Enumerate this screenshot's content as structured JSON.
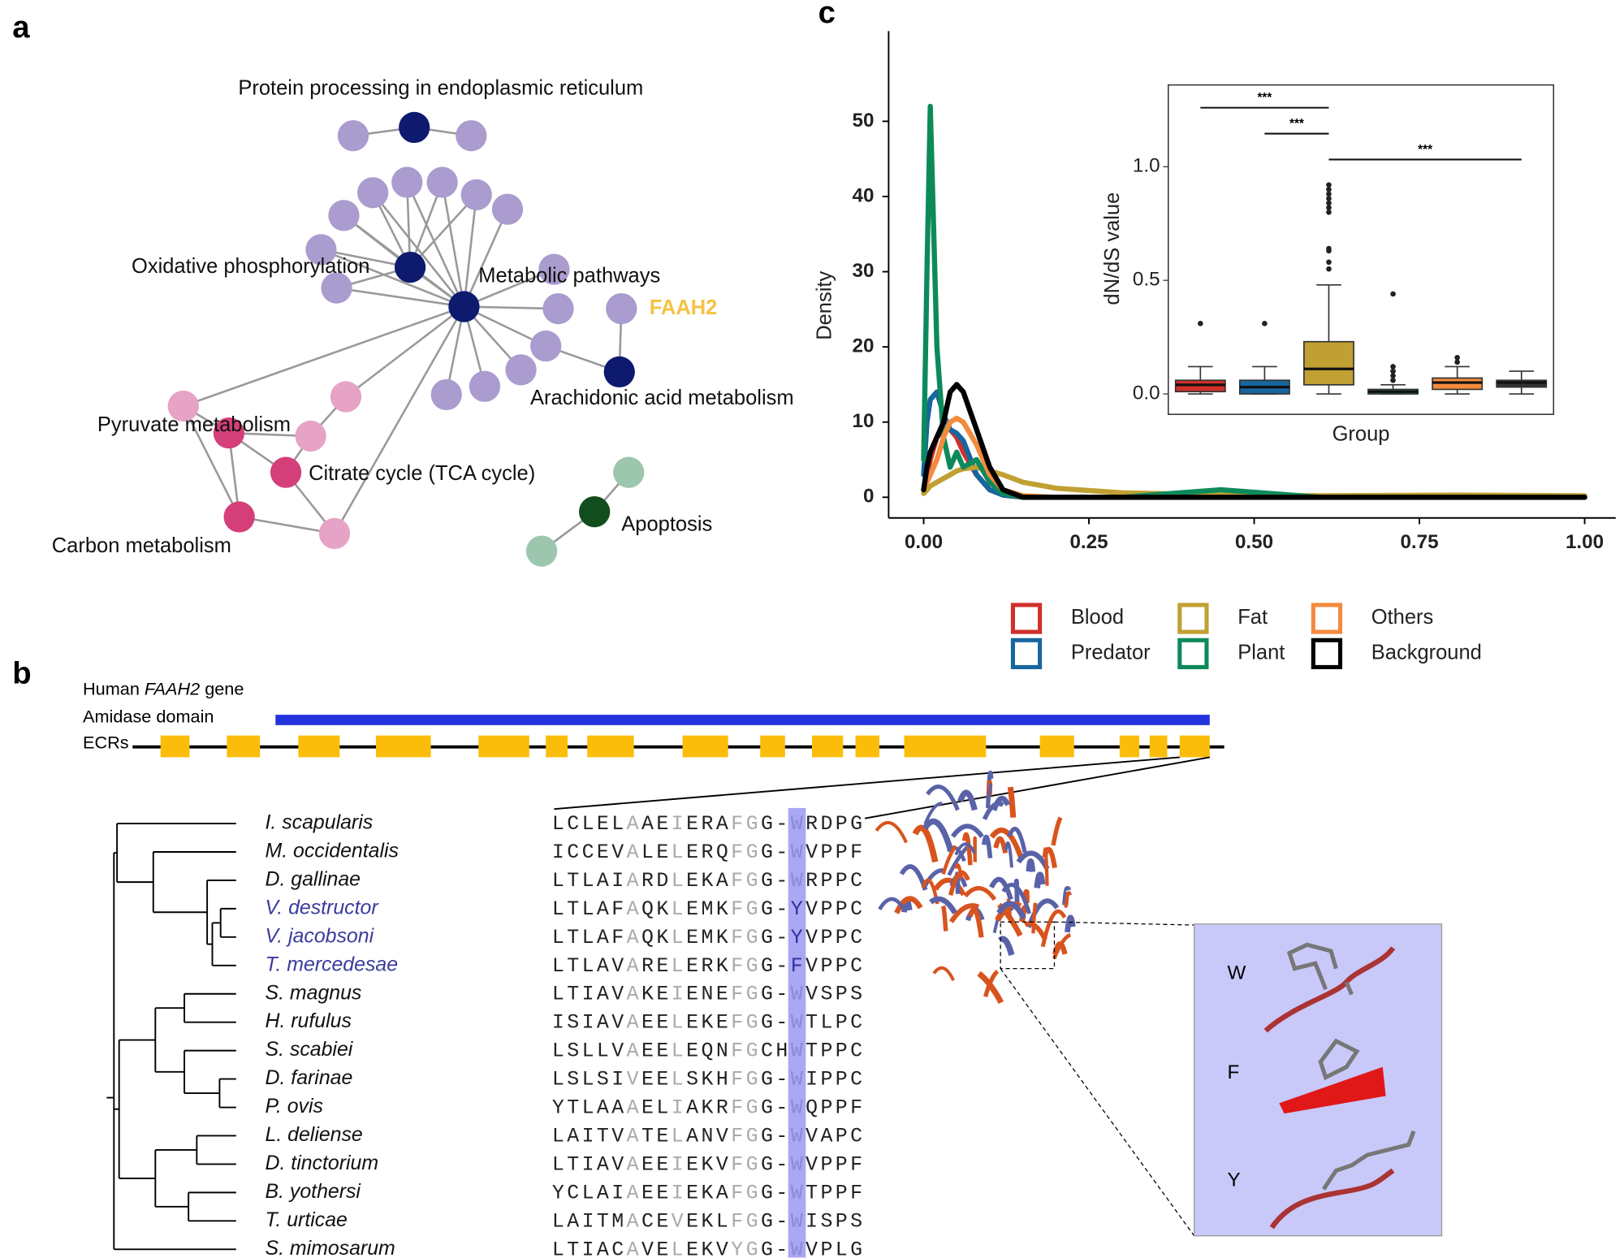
{
  "panel_labels": [
    "a",
    "b",
    "c"
  ],
  "network": {
    "labels": [
      "Protein processing in endoplasmic reticulum",
      "Oxidative phosphorylation",
      "Metabolic pathways",
      "FAAH2",
      "Arachidonic acid metabolism",
      "Pyruvate metabolism",
      "Citrate cycle (TCA cycle)",
      "Carbon metabolism",
      "Apoptosis"
    ]
  },
  "gene": {
    "title_parts": [
      "Human ",
      "FAAH2",
      " gene"
    ],
    "domain": "Amidase domain",
    "ecrs": "ECRs"
  },
  "alignment": {
    "rows": [
      {
        "species": "I. scapularis",
        "color": "#111111",
        "sequence": "LCLELAAEIERAFGG-WRDPG"
      },
      {
        "species": "M. occidentalis",
        "color": "#111111",
        "sequence": "ICCEVALELERQFGG-WVPPF"
      },
      {
        "species": "D. gallinae",
        "color": "#111111",
        "sequence": "LTLAIARDLEKAFGG-WRPPC"
      },
      {
        "species": "V. destructor",
        "color": "#3b3b9e",
        "sequence": "LTLAFAQKLEMKFGG-YVPPC"
      },
      {
        "species": "V. jacobsoni",
        "color": "#3b3b9e",
        "sequence": "LTLAFAQKLEMKFGG-YVPPC"
      },
      {
        "species": "T. mercedesae",
        "color": "#3b3b9e",
        "sequence": "LTLAVARELERKFGG-FVPPC"
      },
      {
        "species": "S. magnus",
        "color": "#111111",
        "sequence": "LTIAVAKEIENEFGG-WVSPS"
      },
      {
        "species": "H. rufulus",
        "color": "#111111",
        "sequence": "ISIAVAEELEKEFGG-WTLPC"
      },
      {
        "species": "S. scabiei",
        "color": "#111111",
        "sequence": "LSLLVAEELEQNFGCHWTPPC"
      },
      {
        "species": "D. farinae",
        "color": "#111111",
        "sequence": "LSLSIVEELSKHFGG-WIPPC"
      },
      {
        "species": "P. ovis",
        "color": "#111111",
        "sequence": "YTLAAAELIAKRFGG-WQPPF"
      },
      {
        "species": "L. deliense",
        "color": "#111111",
        "sequence": "LAITVATELANVFGG-WVAPC"
      },
      {
        "species": "D. tinctorium",
        "color": "#111111",
        "sequence": "LTIAVAEEIEKVFGG-WVPPF"
      },
      {
        "species": "B. yothersi",
        "color": "#111111",
        "sequence": "YCLAIAEEIEKAFGG-WTPPF"
      },
      {
        "species": "T. urticae",
        "color": "#111111",
        "sequence": "LAITMACEVEKLFGG-WISPS"
      },
      {
        "species": "S. mimosarum",
        "color": "#111111",
        "sequence": "LTIACAVELEKVYGG-WVPLG"
      }
    ]
  },
  "structure": {
    "residues": [
      "W",
      "F",
      "Y"
    ]
  },
  "chart_data": [
    {
      "type": "line",
      "ylabel": "Density",
      "legend": "bottom",
      "x": [
        0,
        0.005,
        0.01,
        0.02,
        0.03,
        0.04,
        0.05,
        0.06,
        0.08,
        0.1,
        0.12,
        0.15,
        0.2,
        0.3,
        0.45,
        0.6,
        0.8,
        1.0
      ],
      "xlim": [
        -0.053,
        1.047
      ],
      "ylim": [
        -2.75,
        62
      ],
      "xticks": [
        {
          "value": 0,
          "label": "0.00"
        },
        {
          "value": 0.25,
          "label": "0.25"
        },
        {
          "value": 0.5,
          "label": "0.50"
        },
        {
          "value": 0.75,
          "label": "0.75"
        },
        {
          "value": 1,
          "label": "1.00"
        }
      ],
      "yticks": [
        0,
        10,
        20,
        30,
        40,
        50
      ],
      "series": [
        {
          "name": "Blood",
          "color": "#d0302b",
          "values": [
            1,
            3,
            5,
            8,
            9,
            9,
            8,
            6,
            3,
            1,
            0.3,
            0,
            0,
            0,
            0,
            0,
            0,
            0
          ]
        },
        {
          "name": "Predator",
          "color": "#17669e",
          "values": [
            3,
            10,
            13,
            14,
            11,
            9,
            8.5,
            7.5,
            3,
            1,
            0.3,
            0,
            0,
            0,
            0,
            0,
            0,
            0
          ]
        },
        {
          "name": "Fat",
          "color": "#c1a033",
          "values": [
            0.5,
            1,
            1.5,
            2,
            2.5,
            3,
            3.5,
            3.8,
            4,
            3.5,
            3,
            2,
            1.2,
            0.6,
            0.3,
            0.2,
            0.3,
            0.2
          ]
        },
        {
          "name": "Plant",
          "color": "#0d8a5a",
          "values": [
            5,
            30,
            52,
            20,
            8,
            4,
            6,
            4,
            5,
            2,
            0.5,
            0,
            0,
            0,
            1,
            0,
            0,
            0
          ]
        },
        {
          "name": "Others",
          "color": "#f38b3c",
          "values": [
            1,
            2,
            3,
            5,
            8,
            10,
            10.5,
            10,
            7,
            3,
            1,
            0.2,
            0,
            0,
            0,
            0,
            0,
            0
          ]
        },
        {
          "name": "Background",
          "color": "#000000",
          "values": [
            1,
            4,
            6,
            8,
            10,
            14,
            15,
            14,
            9,
            4,
            1,
            0,
            0,
            0,
            0,
            0,
            0,
            0
          ]
        }
      ]
    },
    {
      "type": "box",
      "xlabel": "Group",
      "ylabel": "dN/dS value",
      "categories": [
        null,
        null,
        null,
        null,
        null,
        null
      ],
      "ylim": [
        -0.09,
        1.36
      ],
      "yticks": [
        {
          "value": 0,
          "label": "0.0"
        },
        {
          "value": 0.5,
          "label": "0.5"
        },
        {
          "value": 1,
          "label": "1.0"
        }
      ],
      "colors": [
        "#d0302b",
        "#17669e",
        "#c1a033",
        "#0d8a5a",
        "#f38b3c",
        "#333333"
      ],
      "boxes": [
        {
          "min": 0,
          "q1": 0.01,
          "median": 0.04,
          "q3": 0.06,
          "max": 0.12,
          "outliers": [
            0.31
          ]
        },
        {
          "min": 0,
          "q1": 0,
          "median": 0.03,
          "q3": 0.06,
          "max": 0.12,
          "outliers": [
            0.31
          ]
        },
        {
          "min": 0,
          "q1": 0.04,
          "median": 0.11,
          "q3": 0.23,
          "max": 0.48,
          "outliers": [
            0.55,
            0.58,
            0.63,
            0.64,
            0.8,
            0.82,
            0.84,
            0.86,
            0.88,
            0.9,
            0.92
          ]
        },
        {
          "min": 0,
          "q1": 0,
          "median": 0.01,
          "q3": 0.02,
          "max": 0.04,
          "outliers": [
            0.06,
            0.08,
            0.1,
            0.12,
            0.44
          ]
        },
        {
          "min": 0,
          "q1": 0.02,
          "median": 0.05,
          "q3": 0.07,
          "max": 0.12,
          "outliers": [
            0.14,
            0.16
          ]
        },
        {
          "min": 0,
          "q1": 0.03,
          "median": 0.05,
          "q3": 0.06,
          "max": 0.1,
          "outliers": []
        }
      ],
      "comparisons": [
        {
          "groups": [
            0,
            2
          ],
          "label": "***"
        },
        {
          "groups": [
            1,
            2
          ],
          "label": "***"
        },
        {
          "groups": [
            2,
            5
          ],
          "label": "***"
        }
      ]
    }
  ]
}
